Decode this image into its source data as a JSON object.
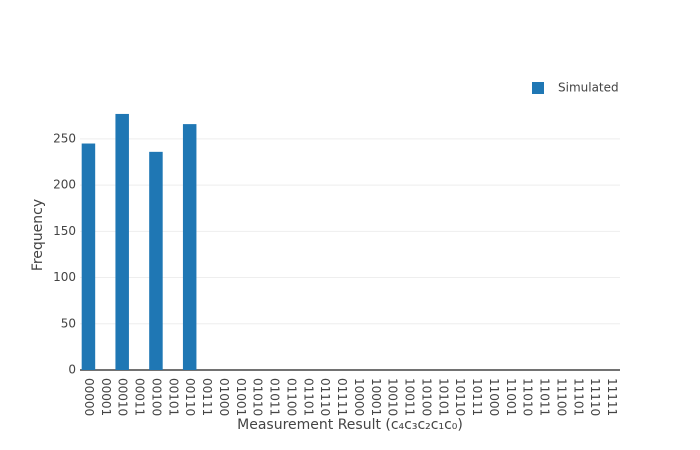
{
  "chart_data": {
    "type": "bar",
    "x_label": "Measurement Result (c₄c₃c₂c₁c₀)",
    "y_label": "Frequency",
    "categories": [
      "00000",
      "00001",
      "00010",
      "00011",
      "00100",
      "00101",
      "00110",
      "00111",
      "01000",
      "01001",
      "01010",
      "01011",
      "01100",
      "01101",
      "01110",
      "01111",
      "10000",
      "10001",
      "10010",
      "10011",
      "10100",
      "10101",
      "10110",
      "10111",
      "11000",
      "11001",
      "11010",
      "11011",
      "11100",
      "11101",
      "11110",
      "11111"
    ],
    "series": [
      {
        "name": "Simulated",
        "color": "#1f77b4",
        "values": [
          245,
          0,
          277,
          0,
          236,
          0,
          266,
          0,
          0,
          0,
          0,
          0,
          0,
          0,
          0,
          0,
          0,
          0,
          0,
          0,
          0,
          0,
          0,
          0,
          0,
          0,
          0,
          0,
          0,
          0,
          0,
          0
        ]
      }
    ],
    "ylim": [
      0,
      291
    ],
    "yticks": [
      0,
      50,
      100,
      150,
      200,
      250
    ],
    "grid": true,
    "legend": "top-right"
  }
}
